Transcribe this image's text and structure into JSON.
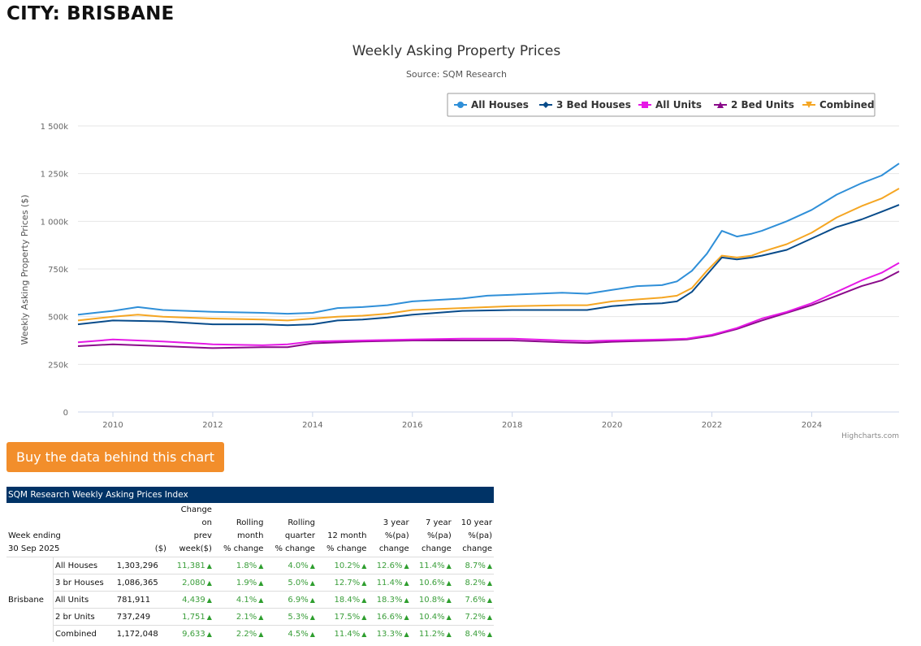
{
  "page": {
    "title": "CITY: BRISBANE"
  },
  "chart_data": {
    "type": "line",
    "title": "Weekly Asking Property Prices",
    "subtitle": "Source: SQM Research",
    "ylabel": "Weekly Asking Property Prices ($)",
    "xlabel": "",
    "credit": "Highcharts.com",
    "ylim": [
      0,
      1500000
    ],
    "xlim": [
      2009.3,
      2025.75
    ],
    "y_ticks": [
      0,
      250000,
      500000,
      750000,
      1000000,
      1250000,
      1500000
    ],
    "y_tick_labels": [
      "0",
      "250k",
      "500k",
      "750k",
      "1 000k",
      "1 250k",
      "1 500k"
    ],
    "x_ticks": [
      2010,
      2012,
      2014,
      2016,
      2018,
      2020,
      2022,
      2024
    ],
    "x_tick_labels": [
      "2010",
      "2012",
      "2014",
      "2016",
      "2018",
      "2020",
      "2022",
      "2024"
    ],
    "grid": true,
    "legend_position": "top-right",
    "series": [
      {
        "name": "All Houses",
        "color": "#2f8fd8",
        "marker": "circle",
        "x": [
          2009.3,
          2010,
          2010.5,
          2011,
          2012,
          2013,
          2013.5,
          2014,
          2014.5,
          2015,
          2015.5,
          2016,
          2017,
          2017.5,
          2018,
          2019,
          2019.5,
          2020,
          2020.5,
          2021,
          2021.3,
          2021.6,
          2021.9,
          2022.2,
          2022.5,
          2022.8,
          2023,
          2023.5,
          2024,
          2024.5,
          2025,
          2025.4,
          2025.75
        ],
        "y": [
          510000,
          530000,
          550000,
          535000,
          525000,
          520000,
          515000,
          520000,
          545000,
          550000,
          560000,
          580000,
          595000,
          610000,
          615000,
          625000,
          620000,
          640000,
          660000,
          665000,
          685000,
          740000,
          830000,
          950000,
          920000,
          935000,
          950000,
          1000000,
          1060000,
          1140000,
          1200000,
          1240000,
          1303296
        ]
      },
      {
        "name": "3 Bed Houses",
        "color": "#084b8a",
        "marker": "diamond",
        "x": [
          2009.3,
          2010,
          2011,
          2012,
          2013,
          2013.5,
          2014,
          2014.5,
          2015,
          2015.5,
          2016,
          2017,
          2018,
          2019,
          2019.5,
          2020,
          2020.5,
          2021,
          2021.3,
          2021.6,
          2021.9,
          2022.2,
          2022.5,
          2022.8,
          2023,
          2023.5,
          2024,
          2024.5,
          2025,
          2025.4,
          2025.75
        ],
        "y": [
          460000,
          480000,
          475000,
          460000,
          460000,
          455000,
          460000,
          480000,
          485000,
          495000,
          510000,
          530000,
          535000,
          535000,
          535000,
          555000,
          565000,
          570000,
          580000,
          630000,
          720000,
          810000,
          800000,
          810000,
          820000,
          850000,
          910000,
          970000,
          1010000,
          1050000,
          1086365
        ]
      },
      {
        "name": "All Units",
        "color": "#e619e6",
        "marker": "square",
        "x": [
          2009.3,
          2010,
          2011,
          2012,
          2013,
          2013.5,
          2014,
          2015,
          2016,
          2017,
          2018,
          2019,
          2019.5,
          2020,
          2021,
          2021.5,
          2022,
          2022.5,
          2023,
          2023.5,
          2024,
          2024.5,
          2025,
          2025.4,
          2025.75
        ],
        "y": [
          365000,
          380000,
          370000,
          355000,
          350000,
          355000,
          370000,
          375000,
          380000,
          385000,
          385000,
          375000,
          372000,
          375000,
          380000,
          385000,
          405000,
          440000,
          490000,
          525000,
          570000,
          630000,
          690000,
          730000,
          781911
        ]
      },
      {
        "name": "2 Bed Units",
        "color": "#8a0a8a",
        "marker": "triangle",
        "x": [
          2009.3,
          2010,
          2011,
          2012,
          2013,
          2013.5,
          2014,
          2015,
          2016,
          2017,
          2018,
          2019,
          2019.5,
          2020,
          2021,
          2021.5,
          2022,
          2022.5,
          2023,
          2023.5,
          2024,
          2024.5,
          2025,
          2025.4,
          2025.75
        ],
        "y": [
          345000,
          355000,
          345000,
          335000,
          340000,
          340000,
          360000,
          370000,
          375000,
          375000,
          375000,
          365000,
          362000,
          368000,
          375000,
          380000,
          400000,
          435000,
          480000,
          520000,
          560000,
          610000,
          660000,
          690000,
          737249
        ]
      },
      {
        "name": "Combined",
        "color": "#f5a623",
        "marker": "triangle-down",
        "x": [
          2009.3,
          2010,
          2010.5,
          2011,
          2012,
          2013,
          2013.5,
          2014,
          2014.5,
          2015,
          2015.5,
          2016,
          2017,
          2018,
          2019,
          2019.5,
          2020,
          2020.5,
          2021,
          2021.3,
          2021.6,
          2021.9,
          2022.2,
          2022.5,
          2022.8,
          2023,
          2023.5,
          2024,
          2024.5,
          2025,
          2025.4,
          2025.75
        ],
        "y": [
          480000,
          500000,
          510000,
          500000,
          490000,
          485000,
          480000,
          490000,
          500000,
          505000,
          515000,
          535000,
          545000,
          555000,
          560000,
          560000,
          580000,
          590000,
          600000,
          610000,
          650000,
          740000,
          820000,
          810000,
          820000,
          840000,
          880000,
          940000,
          1020000,
          1080000,
          1120000,
          1172048
        ]
      }
    ]
  },
  "cta": {
    "label": "Buy the data behind this chart"
  },
  "table": {
    "title": "SQM Research Weekly Asking Prices Index",
    "header_week": "Week ending",
    "header_date": "30 Sep 2025",
    "header_price": "($)",
    "headers": [
      "Change on prev week($)",
      "Rolling month % change",
      "Rolling quarter % change",
      "12 month % change",
      "3 year %(pa) change",
      "7 year %(pa) change",
      "10 year %(pa) change"
    ],
    "city": "Brisbane",
    "rows": [
      {
        "type": "All Houses",
        "price": "1,303,296",
        "values": [
          "11,381",
          "1.8%",
          "4.0%",
          "10.2%",
          "12.6%",
          "11.4%",
          "8.7%"
        ]
      },
      {
        "type": "3 br Houses",
        "price": "1,086,365",
        "values": [
          "2,080",
          "1.9%",
          "5.0%",
          "12.7%",
          "11.4%",
          "10.6%",
          "8.2%"
        ]
      },
      {
        "type": "All Units",
        "price": "781,911",
        "values": [
          "4,439",
          "4.1%",
          "6.9%",
          "18.4%",
          "18.3%",
          "10.8%",
          "7.6%"
        ]
      },
      {
        "type": "2 br Units",
        "price": "737,249",
        "values": [
          "1,751",
          "2.1%",
          "5.3%",
          "17.5%",
          "16.6%",
          "10.4%",
          "7.2%"
        ]
      },
      {
        "type": "Combined",
        "price": "1,172,048",
        "values": [
          "9,633",
          "2.2%",
          "4.5%",
          "11.4%",
          "13.3%",
          "11.2%",
          "8.4%"
        ]
      }
    ]
  }
}
